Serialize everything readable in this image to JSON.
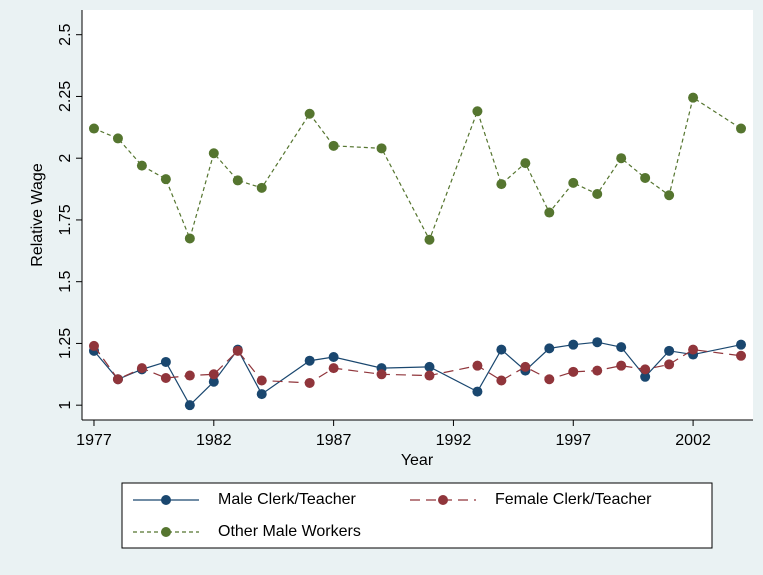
{
  "chart_data": {
    "type": "line",
    "xlabel": "Year",
    "ylabel": "Relative Wage",
    "x": [
      1977,
      1978,
      1979,
      1980,
      1981,
      1982,
      1983,
      1984,
      1986,
      1987,
      1989,
      1991,
      1993,
      1994,
      1995,
      1996,
      1997,
      1998,
      1999,
      2000,
      2001,
      2002,
      2004
    ],
    "series": [
      {
        "name": "Male Clerk/Teacher",
        "color": "#1a476f",
        "dash": "solid",
        "values": [
          1.22,
          1.105,
          1.145,
          1.175,
          1.0,
          1.095,
          1.225,
          1.045,
          1.18,
          1.195,
          1.15,
          1.155,
          1.055,
          1.225,
          1.14,
          1.23,
          1.245,
          1.255,
          1.235,
          1.115,
          1.22,
          1.205,
          1.245
        ]
      },
      {
        "name": "Female Clerk/Teacher",
        "color": "#90353b",
        "dash": "long",
        "values": [
          1.24,
          1.105,
          1.15,
          1.11,
          1.12,
          1.125,
          1.22,
          1.1,
          1.09,
          1.15,
          1.125,
          1.12,
          1.16,
          1.1,
          1.155,
          1.105,
          1.135,
          1.14,
          1.16,
          1.145,
          1.165,
          1.225,
          1.2
        ]
      },
      {
        "name": "Other Male Workers",
        "color": "#55752f",
        "dash": "short",
        "values": [
          2.12,
          2.08,
          1.97,
          1.915,
          1.675,
          2.02,
          1.91,
          1.88,
          2.18,
          2.05,
          2.04,
          1.67,
          2.19,
          1.895,
          1.98,
          1.78,
          1.9,
          1.855,
          2.0,
          1.92,
          1.85,
          2.245,
          2.12
        ]
      }
    ],
    "xlim": [
      1976.5,
      2004.5
    ],
    "xticks": [
      1977,
      1982,
      1987,
      1992,
      1997,
      2002
    ],
    "ylim": [
      0.94,
      2.6
    ],
    "yticks": [
      1,
      1.25,
      1.5,
      1.75,
      2,
      2.25,
      2.5
    ],
    "grid": false,
    "legend": "bottom"
  }
}
